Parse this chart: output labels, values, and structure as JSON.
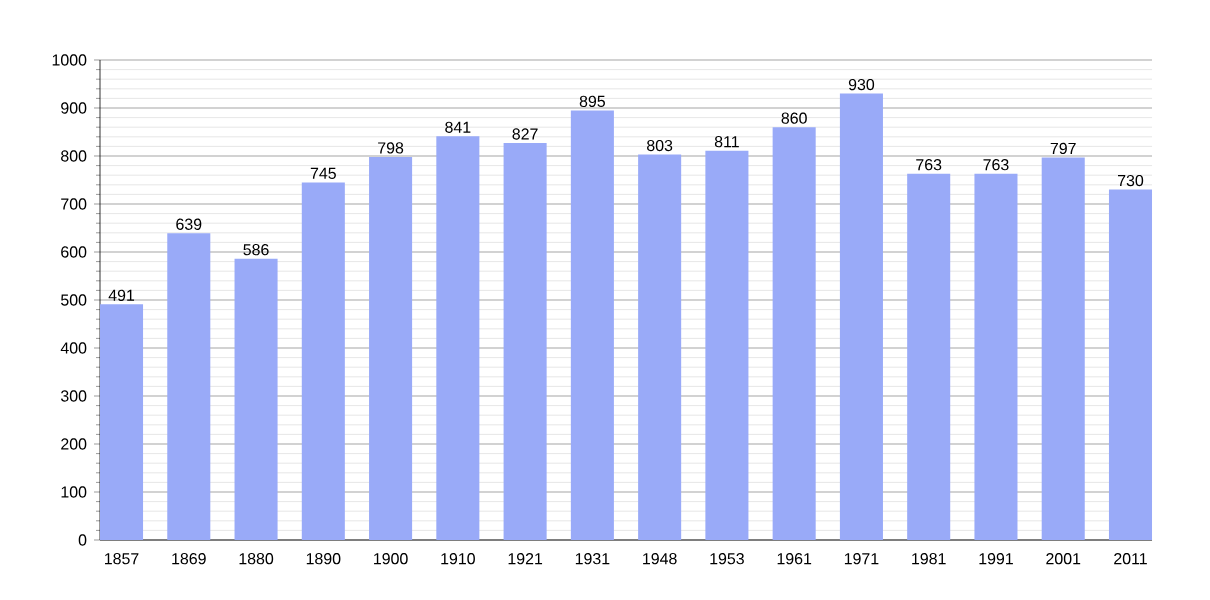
{
  "chart_data": {
    "type": "bar",
    "categories": [
      "1857",
      "1869",
      "1880",
      "1890",
      "1900",
      "1910",
      "1921",
      "1931",
      "1948",
      "1953",
      "1961",
      "1971",
      "1981",
      "1991",
      "2001",
      "2011"
    ],
    "values": [
      491,
      639,
      586,
      745,
      798,
      841,
      827,
      895,
      803,
      811,
      860,
      930,
      763,
      763,
      797,
      730
    ],
    "color": "#99aaf8",
    "ylim": [
      0,
      1000
    ],
    "yticks": [
      0,
      100,
      200,
      300,
      400,
      500,
      600,
      700,
      800,
      900,
      1000
    ],
    "grid": "y",
    "data_labels": true
  }
}
